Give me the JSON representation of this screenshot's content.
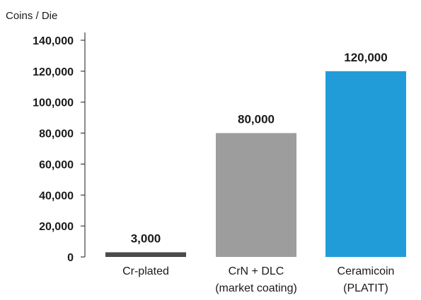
{
  "chart_data": {
    "type": "bar",
    "title": "",
    "ylabel": "Coins / Die",
    "xlabel": "",
    "ylim": [
      0,
      140000
    ],
    "y_ticks": [
      {
        "value": 0,
        "label": "0"
      },
      {
        "value": 20000,
        "label": "20,000"
      },
      {
        "value": 40000,
        "label": "40,000"
      },
      {
        "value": 60000,
        "label": "60,000"
      },
      {
        "value": 80000,
        "label": "80,000"
      },
      {
        "value": 100000,
        "label": "100,000"
      },
      {
        "value": 120000,
        "label": "120,000"
      },
      {
        "value": 140000,
        "label": "140,000"
      }
    ],
    "grid": false,
    "bars": [
      {
        "lines": [
          "Cr-plated"
        ],
        "value": 3000,
        "value_label": "3,000",
        "color": "#4a4a4a"
      },
      {
        "lines": [
          "CrN + DLC",
          "(market coating)"
        ],
        "value": 80000,
        "value_label": "80,000",
        "color": "#9d9d9d"
      },
      {
        "lines": [
          "Ceramicoin",
          "(PLATIT)"
        ],
        "value": 120000,
        "value_label": "120,000",
        "color": "#229cd8"
      }
    ]
  }
}
